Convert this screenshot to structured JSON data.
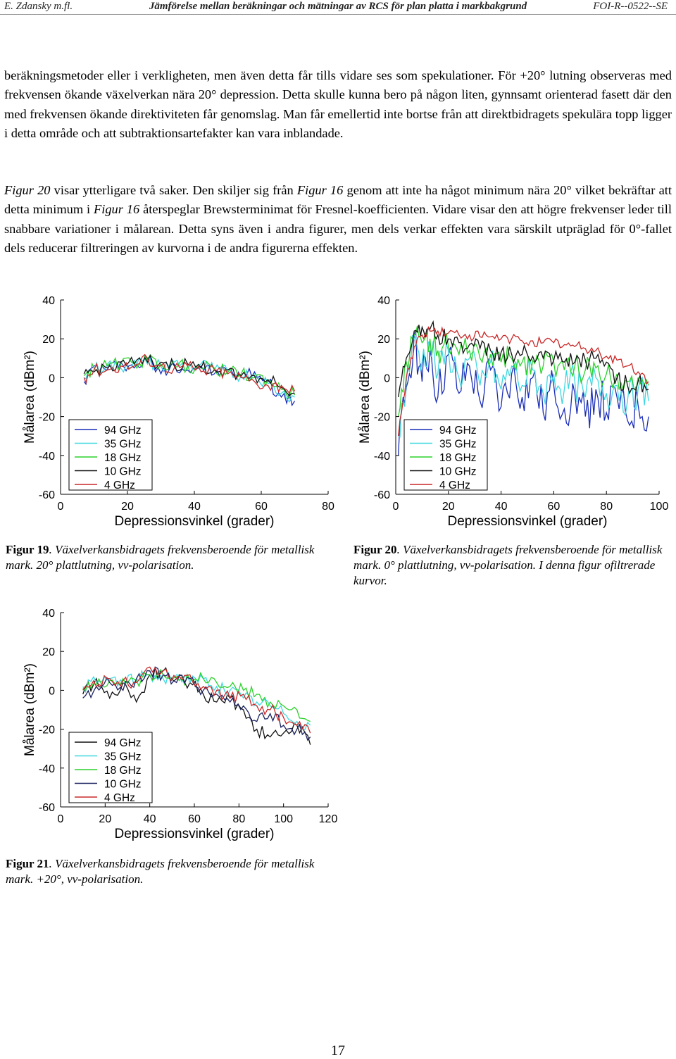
{
  "header": {
    "left": "E. Zdansky m.fl.",
    "center": "Jämförelse mellan beräkningar och mätningar av RCS för plan platta i markbakgrund",
    "right": "FOI-R--0522--SE"
  },
  "body": {
    "p1": "beräkningsmetoder eller i verkligheten, men även detta får tills vidare ses som spekulationer. För +20° lutning observeras med frekvensen ökande växelverkan nära 20° depression. Detta skulle kunna bero på någon liten, gynnsamt orienterad fasett där den med frekvensen ökande direktiviteten får genomslag. Man får emellertid inte bortse från att direktbidragets spekulära topp ligger i detta område och att subtraktionsartefakter kan vara inblandade.",
    "p2_ref1": "Figur 20",
    "p2_a": " visar ytterligare två saker. Den skiljer sig från ",
    "p2_ref2": "Figur 16",
    "p2_b": " genom att inte ha något minimum nära 20° vilket bekräftar att detta minimum i ",
    "p2_ref3": "Figur 16",
    "p2_c": " återspeglar Brewsterminimat för Fresnel-koefficienten. Vidare visar den att högre frekvenser leder till snabbare variationer i målarean. Detta syns även i andra figurer, men dels verkar effekten vara särskilt utpräglad för 0°-fallet dels reducerar filtreringen av kurvorna i de andra figurerna effekten."
  },
  "chart_data": [
    {
      "id": "fig19",
      "type": "line",
      "xlabel": "Depressionsvinkel (grader)",
      "ylabel": "Målarea (dBm²)",
      "xlim": [
        0,
        80
      ],
      "ylim": [
        -60,
        40
      ],
      "xticks": [
        "0",
        "20",
        "40",
        "60",
        "80"
      ],
      "yticks": [
        "40",
        "20",
        "0",
        "-20",
        "-40",
        "-60"
      ],
      "grid": false,
      "legend_position": "bottom-left",
      "series": [
        {
          "name": "94 GHz",
          "color": "#1a2db8",
          "x": [
            7,
            10,
            14,
            18,
            22,
            26,
            30,
            34,
            38,
            42,
            46,
            50,
            54,
            58,
            62,
            66,
            70
          ],
          "y": [
            -2,
            6,
            4,
            8,
            5,
            10,
            2,
            7,
            4,
            6,
            2,
            4,
            0,
            3,
            -2,
            -10,
            -12
          ]
        },
        {
          "name": "35 GHz",
          "color": "#3fd8e0",
          "x": [
            7,
            10,
            14,
            18,
            22,
            26,
            30,
            34,
            38,
            42,
            46,
            50,
            54,
            58,
            62,
            66,
            70
          ],
          "y": [
            0,
            4,
            7,
            5,
            9,
            7,
            6,
            8,
            5,
            7,
            4,
            3,
            1,
            2,
            -3,
            -8,
            -10
          ]
        },
        {
          "name": "18 GHz",
          "color": "#2bd12b",
          "x": [
            7,
            10,
            14,
            18,
            22,
            26,
            30,
            34,
            38,
            42,
            46,
            50,
            54,
            58,
            62,
            66,
            70
          ],
          "y": [
            1,
            5,
            6,
            7,
            8,
            9,
            7,
            6,
            6,
            5,
            5,
            3,
            2,
            0,
            -1,
            -6,
            -9
          ]
        },
        {
          "name": "10 GHz",
          "color": "#111111",
          "x": [
            7,
            10,
            14,
            18,
            22,
            26,
            30,
            34,
            38,
            42,
            46,
            50,
            54,
            58,
            62,
            66,
            70
          ],
          "y": [
            2,
            3,
            5,
            8,
            7,
            8,
            8,
            6,
            7,
            5,
            4,
            4,
            1,
            1,
            -1,
            -5,
            -8
          ]
        },
        {
          "name": "4 GHz",
          "color": "#c82828",
          "x": [
            7,
            10,
            14,
            18,
            22,
            26,
            30,
            34,
            38,
            42,
            46,
            50,
            54,
            58,
            62,
            66,
            70
          ],
          "y": [
            0,
            4,
            4,
            6,
            6,
            10,
            6,
            5,
            6,
            3,
            4,
            2,
            0,
            -2,
            -4,
            -4,
            -7
          ]
        }
      ]
    },
    {
      "id": "fig20",
      "type": "line",
      "xlabel": "Depressionsvinkel (grader)",
      "ylabel": "Målarea (dBm²)",
      "xlim": [
        0,
        100
      ],
      "ylim": [
        -60,
        40
      ],
      "xticks": [
        "0",
        "20",
        "40",
        "60",
        "80",
        "100"
      ],
      "yticks": [
        "40",
        "20",
        "0",
        "-20",
        "-40",
        "-60"
      ],
      "grid": false,
      "legend_position": "bottom-left",
      "series": [
        {
          "name": "94 GHz",
          "color": "#1a2db8",
          "x": [
            1,
            4,
            7,
            10,
            13,
            16,
            20,
            24,
            28,
            32,
            36,
            40,
            44,
            48,
            52,
            56,
            60,
            64,
            68,
            72,
            76,
            80,
            84,
            88,
            92,
            96
          ],
          "y": [
            -40,
            -5,
            22,
            -2,
            14,
            -10,
            12,
            -8,
            6,
            -12,
            4,
            -15,
            2,
            -10,
            0,
            -18,
            -4,
            -16,
            -8,
            -20,
            -6,
            -18,
            -10,
            -22,
            -14,
            -20
          ]
        },
        {
          "name": "35 GHz",
          "color": "#3fd8e0",
          "x": [
            1,
            4,
            7,
            10,
            13,
            16,
            20,
            24,
            28,
            32,
            36,
            40,
            44,
            48,
            52,
            56,
            60,
            64,
            68,
            72,
            76,
            80,
            84,
            88,
            92,
            96
          ],
          "y": [
            -30,
            -2,
            20,
            8,
            18,
            2,
            14,
            0,
            10,
            -4,
            8,
            -6,
            6,
            -4,
            4,
            -8,
            2,
            -6,
            -2,
            -10,
            0,
            -8,
            -4,
            -12,
            -6,
            -12
          ]
        },
        {
          "name": "18 GHz",
          "color": "#2bd12b",
          "x": [
            1,
            4,
            7,
            10,
            13,
            16,
            20,
            24,
            28,
            32,
            36,
            40,
            44,
            48,
            52,
            56,
            60,
            64,
            68,
            72,
            76,
            80,
            84,
            88,
            92,
            96
          ],
          "y": [
            -20,
            8,
            22,
            18,
            20,
            14,
            16,
            12,
            14,
            10,
            12,
            8,
            10,
            8,
            9,
            6,
            8,
            4,
            6,
            4,
            5,
            2,
            2,
            -2,
            0,
            -4
          ]
        },
        {
          "name": "10 GHz",
          "color": "#111111",
          "x": [
            1,
            4,
            7,
            10,
            13,
            16,
            20,
            24,
            28,
            32,
            36,
            40,
            44,
            48,
            52,
            56,
            60,
            64,
            68,
            72,
            76,
            80,
            84,
            88,
            92,
            96
          ],
          "y": [
            -10,
            10,
            24,
            26,
            25,
            22,
            20,
            18,
            17,
            15,
            14,
            13,
            12,
            12,
            11,
            10,
            9,
            8,
            8,
            9,
            10,
            8,
            0,
            -4,
            -2,
            -6
          ]
        },
        {
          "name": "4 GHz",
          "color": "#c82828",
          "x": [
            1,
            4,
            7,
            10,
            13,
            16,
            20,
            24,
            28,
            32,
            36,
            40,
            44,
            48,
            52,
            56,
            60,
            64,
            68,
            72,
            76,
            80,
            84,
            88,
            92,
            96
          ],
          "y": [
            -30,
            0,
            16,
            22,
            24,
            24,
            23,
            22,
            22,
            21,
            21,
            20,
            20,
            19,
            19,
            18,
            18,
            17,
            16,
            15,
            14,
            11,
            9,
            6,
            3,
            -2
          ]
        }
      ]
    },
    {
      "id": "fig21",
      "type": "line",
      "xlabel": "Depressionsvinkel (grader)",
      "ylabel": "Målarea (dBm²)",
      "xlim": [
        0,
        120
      ],
      "ylim": [
        -60,
        40
      ],
      "xticks": [
        "0",
        "20",
        "40",
        "60",
        "80",
        "100",
        "120"
      ],
      "yticks": [
        "40",
        "20",
        "0",
        "-20",
        "-40",
        "-60"
      ],
      "grid": false,
      "legend_position": "bottom-left",
      "series": [
        {
          "name": "94 GHz",
          "color": "#111111",
          "x": [
            10,
            16,
            22,
            28,
            34,
            40,
            46,
            52,
            58,
            64,
            70,
            76,
            82,
            88,
            94,
            100,
            106,
            112
          ],
          "y": [
            -2,
            6,
            -4,
            4,
            -6,
            8,
            10,
            6,
            4,
            -2,
            -6,
            -4,
            -10,
            -20,
            -24,
            -22,
            -18,
            -28
          ]
        },
        {
          "name": "35 GHz",
          "color": "#3fd8e0",
          "x": [
            10,
            16,
            22,
            28,
            34,
            40,
            46,
            52,
            58,
            64,
            70,
            76,
            82,
            88,
            94,
            100,
            106,
            112
          ],
          "y": [
            2,
            4,
            6,
            4,
            6,
            8,
            6,
            8,
            4,
            6,
            2,
            0,
            -4,
            -6,
            -8,
            -12,
            -16,
            -18
          ]
        },
        {
          "name": "18 GHz",
          "color": "#2bd12b",
          "x": [
            10,
            16,
            22,
            28,
            34,
            40,
            46,
            52,
            58,
            64,
            70,
            76,
            82,
            88,
            94,
            100,
            106,
            112
          ],
          "y": [
            1,
            3,
            5,
            6,
            5,
            8,
            8,
            7,
            6,
            6,
            4,
            2,
            0,
            -2,
            -6,
            -8,
            -10,
            -16
          ]
        },
        {
          "name": "10 GHz",
          "color": "#1a2060",
          "x": [
            10,
            16,
            22,
            28,
            34,
            40,
            46,
            52,
            58,
            64,
            70,
            76,
            82,
            88,
            94,
            100,
            106,
            112
          ],
          "y": [
            -4,
            2,
            4,
            0,
            6,
            10,
            8,
            4,
            6,
            0,
            -2,
            -6,
            -8,
            -16,
            -12,
            -18,
            -20,
            -24
          ]
        },
        {
          "name": "4 GHz",
          "color": "#c82828",
          "x": [
            10,
            16,
            22,
            28,
            34,
            40,
            46,
            52,
            58,
            64,
            70,
            76,
            82,
            88,
            94,
            100,
            106,
            112
          ],
          "y": [
            0,
            2,
            6,
            5,
            4,
            12,
            10,
            6,
            8,
            2,
            0,
            -4,
            -2,
            -8,
            -10,
            -14,
            -18,
            -22
          ]
        }
      ]
    }
  ],
  "captions": {
    "fig19_label": "Figur 19",
    "fig19_text": ". Växelverkansbidragets frekvensberoende för metallisk mark. 20° plattlutning, vv-polarisation.",
    "fig20_label": "Figur 20",
    "fig20_text": ". Växelverkansbidragets frekvensberoende för metallisk mark. 0° plattlutning, vv-polarisation. I denna figur ofiltrerade kurvor.",
    "fig21_label": "Figur 21",
    "fig21_text": ". Växelverkansbidragets frekvensberoende för metallisk mark. +20°, vv-polarisation."
  },
  "page_number": "17"
}
